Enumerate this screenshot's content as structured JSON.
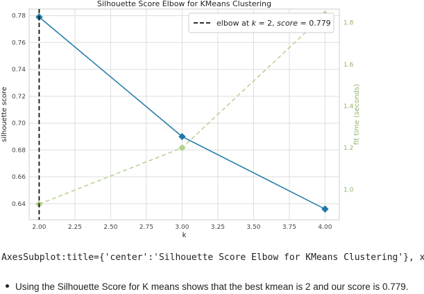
{
  "chart_data": {
    "type": "line",
    "title": "Silhouette Score Elbow for KMeans Clustering",
    "xlabel": "k",
    "ylabel": "silhouette score",
    "ylabel2": "fit time (seconds)",
    "xlim": [
      1.93,
      4.1
    ],
    "ylim": [
      0.628,
      0.785
    ],
    "y2lim": [
      0.855,
      1.865
    ],
    "xticks": [
      "2.00",
      "2.25",
      "2.50",
      "2.75",
      "3.00",
      "3.25",
      "3.50",
      "3.75",
      "4.00"
    ],
    "yticks": [
      "0.64",
      "0.66",
      "0.68",
      "0.70",
      "0.72",
      "0.74",
      "0.76",
      "0.78"
    ],
    "y2ticks": [
      "1.0",
      "1.2",
      "1.4",
      "1.6",
      "1.8"
    ],
    "grid": true,
    "legend_position": "top-right",
    "series": [
      {
        "name": "",
        "axis": "left",
        "color": "#1f77a8",
        "style": "solid",
        "marker": "diamond",
        "x": [
          2,
          3,
          4
        ],
        "y": [
          0.779,
          0.69,
          0.636
        ]
      },
      {
        "name": "",
        "axis": "right",
        "color": "#b3d18f",
        "style": "dashed",
        "marker": "diamond",
        "x": [
          2,
          3,
          4
        ],
        "y": [
          0.93,
          1.2,
          1.84
        ]
      }
    ],
    "elbow": {
      "k": 2,
      "score": 0.779,
      "legend_prefix": "elbow at ",
      "legend_k": "k",
      "legend_eq1": " = 2, ",
      "legend_score": "score",
      "legend_eq2": " = 0.779"
    }
  },
  "output_repr": "AxesSubplot:title={'center':'Silhouette Score Elbow for KMeans Clustering'}, xl",
  "bullet_text": "Using the Silhouette Score for K means shows that the best kmean is 2 and our score is 0.779."
}
